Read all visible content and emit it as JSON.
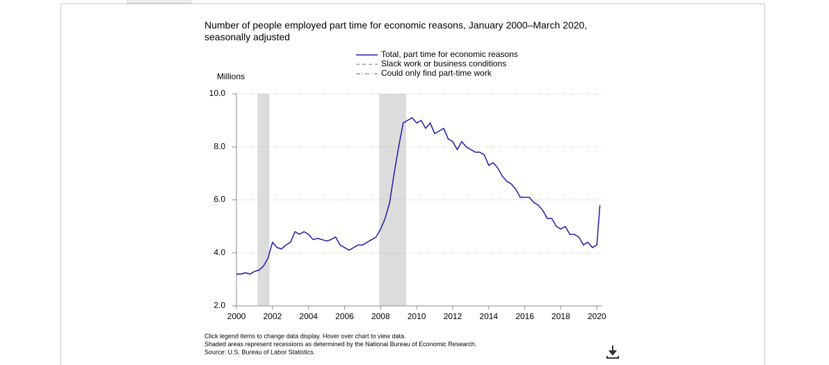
{
  "chart_data": {
    "type": "line",
    "title": "Number of people employed part time for economic reasons, January 2000–March 2020, seasonally adjusted",
    "y_label": "Millions",
    "x": [
      2000.0,
      2000.25,
      2000.5,
      2000.75,
      2001.0,
      2001.25,
      2001.5,
      2001.75,
      2002.0,
      2002.25,
      2002.5,
      2002.75,
      2003.0,
      2003.25,
      2003.5,
      2003.75,
      2004.0,
      2004.25,
      2004.5,
      2004.75,
      2005.0,
      2005.25,
      2005.5,
      2005.75,
      2006.0,
      2006.25,
      2006.5,
      2006.75,
      2007.0,
      2007.25,
      2007.5,
      2007.75,
      2008.0,
      2008.25,
      2008.5,
      2008.75,
      2009.0,
      2009.25,
      2009.5,
      2009.75,
      2010.0,
      2010.25,
      2010.5,
      2010.75,
      2011.0,
      2011.25,
      2011.5,
      2011.75,
      2012.0,
      2012.25,
      2012.5,
      2012.75,
      2013.0,
      2013.25,
      2013.5,
      2013.75,
      2014.0,
      2014.25,
      2014.5,
      2014.75,
      2015.0,
      2015.25,
      2015.5,
      2015.75,
      2016.0,
      2016.25,
      2016.5,
      2016.75,
      2017.0,
      2017.25,
      2017.5,
      2017.75,
      2018.0,
      2018.25,
      2018.5,
      2018.75,
      2019.0,
      2019.25,
      2019.5,
      2019.75,
      2020.0,
      2020.17
    ],
    "series": [
      {
        "name": "Total, part time for economic reasons",
        "color": "#1a1aa6",
        "values": [
          3.2,
          3.2,
          3.25,
          3.2,
          3.3,
          3.35,
          3.5,
          3.8,
          4.4,
          4.2,
          4.15,
          4.3,
          4.4,
          4.8,
          4.7,
          4.8,
          4.7,
          4.5,
          4.55,
          4.5,
          4.45,
          4.5,
          4.6,
          4.3,
          4.2,
          4.1,
          4.2,
          4.3,
          4.3,
          4.4,
          4.5,
          4.6,
          4.9,
          5.3,
          5.9,
          7.0,
          8.0,
          8.9,
          9.0,
          9.1,
          8.9,
          9.0,
          8.7,
          8.9,
          8.5,
          8.6,
          8.7,
          8.3,
          8.2,
          7.9,
          8.2,
          8.0,
          7.9,
          7.8,
          7.8,
          7.7,
          7.3,
          7.4,
          7.2,
          6.9,
          6.7,
          6.6,
          6.4,
          6.1,
          6.1,
          6.1,
          5.9,
          5.8,
          5.6,
          5.3,
          5.3,
          5.0,
          4.9,
          5.0,
          4.7,
          4.7,
          4.6,
          4.3,
          4.4,
          4.2,
          4.3,
          5.8
        ]
      },
      {
        "name": "Slack work or business conditions",
        "color": "#999999",
        "dash": "5,4",
        "values": null
      },
      {
        "name": "Could only find part-time work",
        "color": "#999999",
        "dash": "6,3,1,3",
        "values": null
      }
    ],
    "recessions": [
      [
        2001.17,
        2001.83
      ],
      [
        2007.92,
        2009.42
      ]
    ],
    "xlim": [
      2000,
      2020.3
    ],
    "xticks": [
      2000,
      2002,
      2004,
      2006,
      2008,
      2010,
      2012,
      2014,
      2016,
      2018,
      2020
    ],
    "ylim": [
      2,
      10
    ],
    "yticks": [
      {
        "value": 2,
        "label": "2.0"
      },
      {
        "value": 4,
        "label": "4.0"
      },
      {
        "value": 6,
        "label": "6.0"
      },
      {
        "value": 8,
        "label": "8.0"
      },
      {
        "value": 10,
        "label": "10.0"
      }
    ],
    "grid": true,
    "notes": [
      "Click legend items to change data display. Hover over chart to view data.",
      "Shaded areas represent recessions as determined by the National Bureau of Economic Research.",
      "Source: U.S. Bureau of Labor Statistics."
    ]
  }
}
